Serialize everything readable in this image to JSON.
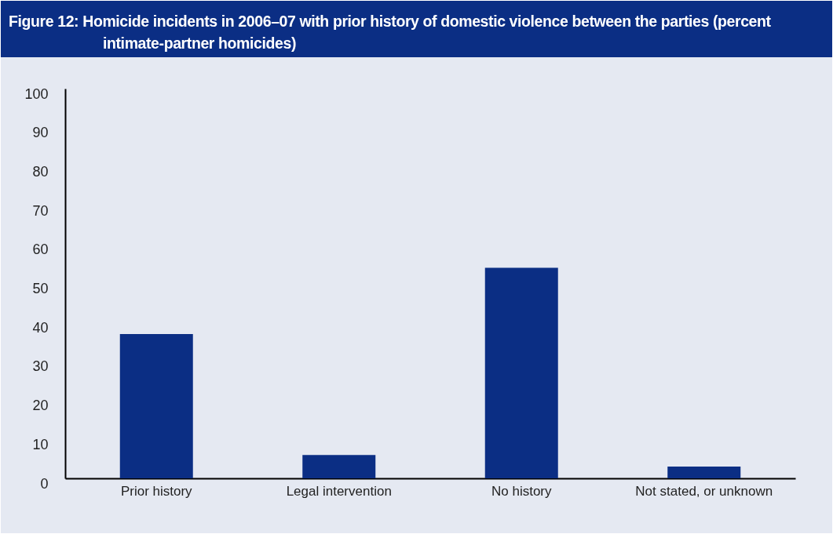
{
  "chart_data": {
    "type": "bar",
    "title": "Figure 12: Homicide incidents in 2006–07 with prior history of domestic violence between the parties (percent intimate-partner homicides)",
    "categories": [
      "Prior history",
      "Legal intervention",
      "No history",
      "Not stated, or unknown"
    ],
    "values": [
      37,
      6,
      54,
      3
    ],
    "color": "#0b2e84",
    "ylim": [
      0,
      100
    ],
    "yticks": [
      0,
      10,
      20,
      30,
      40,
      50,
      60,
      70,
      80,
      90,
      100
    ],
    "grid": false
  }
}
